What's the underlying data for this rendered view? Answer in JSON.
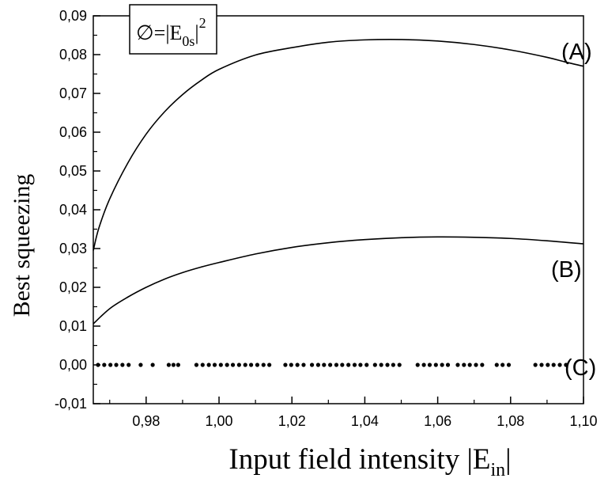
{
  "chart_data": {
    "type": "line",
    "ylabel": "Best squeezing",
    "xlabel_main": "Input field intensity |E",
    "xlabel_sub": "in",
    "xlabel_end": "|",
    "xlim": [
      0.9655,
      1.1
    ],
    "ylim": [
      -0.01,
      0.09
    ],
    "x_ticks": [
      0.98,
      1.0,
      1.02,
      1.04,
      1.06,
      1.08,
      1.1
    ],
    "x_tick_labels": [
      "0,98",
      "1,00",
      "1,02",
      "1,04",
      "1,06",
      "1,08",
      "1,10"
    ],
    "y_ticks": [
      -0.01,
      0.0,
      0.01,
      0.02,
      0.03,
      0.04,
      0.05,
      0.06,
      0.07,
      0.08,
      0.09
    ],
    "y_tick_labels": [
      "-0,01",
      "0,00",
      "0,01",
      "0,02",
      "0,03",
      "0,04",
      "0,05",
      "0,06",
      "0,07",
      "0,08",
      "0,09"
    ],
    "legend": {
      "symbol": "∅",
      "eq": "=|E",
      "sub": "0s",
      "close": "|",
      "sup": "2"
    },
    "series": [
      {
        "name": "(A)",
        "style": "line",
        "x": [
          0.9655,
          0.967,
          0.97,
          0.975,
          0.98,
          0.985,
          0.99,
          0.995,
          1.0,
          1.01,
          1.02,
          1.03,
          1.04,
          1.05,
          1.06,
          1.07,
          1.08,
          1.09,
          1.095,
          1.1
        ],
        "y": [
          0.0295,
          0.0352,
          0.0428,
          0.0521,
          0.0595,
          0.0652,
          0.0697,
          0.0733,
          0.0762,
          0.0799,
          0.0818,
          0.0832,
          0.0838,
          0.0839,
          0.0835,
          0.0826,
          0.0812,
          0.0793,
          0.0781,
          0.077
        ]
      },
      {
        "name": "(B)",
        "style": "line",
        "x": [
          0.9655,
          0.97,
          0.975,
          0.98,
          0.985,
          0.99,
          0.995,
          1.0,
          1.01,
          1.02,
          1.03,
          1.04,
          1.05,
          1.06,
          1.07,
          1.08,
          1.09,
          1.1
        ],
        "y": [
          0.0106,
          0.0145,
          0.0175,
          0.02,
          0.0221,
          0.0238,
          0.0252,
          0.0264,
          0.0286,
          0.0303,
          0.0315,
          0.0323,
          0.0328,
          0.033,
          0.0329,
          0.0326,
          0.032,
          0.0312
        ]
      },
      {
        "name": "(C)",
        "style": "dots",
        "x": [
          0.9668,
          0.9685,
          0.9702,
          0.9718,
          0.9735,
          0.9752,
          0.9785,
          0.9818,
          0.9862,
          0.9875,
          0.9888,
          0.9938,
          0.9955,
          0.9972,
          0.9988,
          1.0005,
          1.0022,
          1.0038,
          1.0055,
          1.0072,
          1.0088,
          1.0105,
          1.0122,
          1.0138,
          1.0182,
          1.0198,
          1.0215,
          1.0232,
          1.0255,
          1.0272,
          1.0288,
          1.0305,
          1.0322,
          1.0338,
          1.0355,
          1.0372,
          1.0388,
          1.0405,
          1.0428,
          1.0445,
          1.0462,
          1.0478,
          1.0495,
          1.0545,
          1.0562,
          1.0578,
          1.0595,
          1.0612,
          1.0628,
          1.0655,
          1.0672,
          1.0688,
          1.0705,
          1.0722,
          1.0762,
          1.0778,
          1.0795,
          1.0868,
          1.0885,
          1.0902,
          1.0918,
          1.0935,
          1.0952
        ],
        "y_value": 0.0
      }
    ],
    "grid": false
  }
}
